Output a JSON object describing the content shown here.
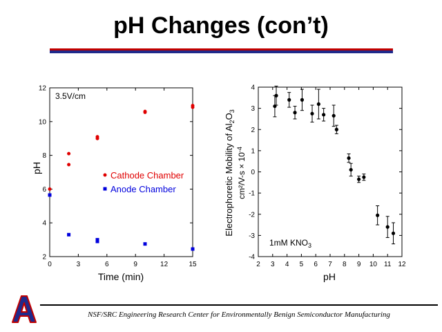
{
  "slide": {
    "title": "pH Changes (con’t)",
    "footer": "NSF/SRC Engineering Research Center for Environmentally Benign Semiconductor Manufacturing",
    "logo_letter": "A",
    "rule_colors": [
      "#c00000",
      "#1f2a8c"
    ]
  },
  "chart_data": [
    {
      "type": "scatter",
      "title": "",
      "annotation": "3.5V/cm",
      "xlabel": "Time (min)",
      "ylabel": "pH",
      "xlim": [
        0,
        15
      ],
      "ylim": [
        2,
        12
      ],
      "xticks": [
        0,
        3,
        6,
        9,
        12,
        15
      ],
      "yticks": [
        2,
        4,
        6,
        8,
        10,
        12
      ],
      "grid": false,
      "legend": "center-right",
      "series": [
        {
          "name": "Cathode Chamber",
          "color": "#e00000",
          "marker": "circle",
          "points": [
            [
              0,
              6.0
            ],
            [
              2,
              8.1
            ],
            [
              2,
              7.45
            ],
            [
              5,
              9.1
            ],
            [
              5,
              9.0
            ],
            [
              10,
              10.6
            ],
            [
              10,
              10.55
            ],
            [
              15,
              10.95
            ],
            [
              15,
              10.85
            ]
          ]
        },
        {
          "name": "Anode Chamber",
          "color": "#0000dd",
          "marker": "square",
          "points": [
            [
              0,
              5.65
            ],
            [
              2,
              3.3
            ],
            [
              5,
              3.0
            ],
            [
              5,
              2.9
            ],
            [
              10,
              2.75
            ],
            [
              15,
              2.45
            ]
          ]
        }
      ]
    },
    {
      "type": "scatter",
      "title": "",
      "annotation": "1mM KNO3",
      "xlabel": "pH",
      "ylabel_line1": "Electrophoretic Mobility of Al2O3",
      "ylabel_line2": "cm²/V-s  × 10-4",
      "xlim": [
        2,
        12
      ],
      "ylim": [
        -4,
        4
      ],
      "xticks": [
        2,
        3,
        4,
        5,
        6,
        7,
        8,
        9,
        10,
        11,
        12
      ],
      "yticks": [
        -4,
        -3,
        -2,
        -1,
        0,
        1,
        2,
        3,
        4
      ],
      "grid": false,
      "series": [
        {
          "color": "#000000",
          "marker": "circle",
          "error_bars": true,
          "points": [
            {
              "x": 3.15,
              "y": 3.1,
              "err": 0.5
            },
            {
              "x": 3.25,
              "y": 3.6,
              "err": 0.45
            },
            {
              "x": 4.15,
              "y": 3.4,
              "err": 0.35
            },
            {
              "x": 4.55,
              "y": 2.8,
              "err": 0.3
            },
            {
              "x": 5.05,
              "y": 3.4,
              "err": 0.5
            },
            {
              "x": 5.75,
              "y": 2.75,
              "err": 0.4
            },
            {
              "x": 6.2,
              "y": 3.2,
              "err": 0.7
            },
            {
              "x": 6.55,
              "y": 2.7,
              "err": 0.3
            },
            {
              "x": 7.25,
              "y": 2.65,
              "err": 0.5
            },
            {
              "x": 7.45,
              "y": 2.0,
              "err": 0.2
            },
            {
              "x": 8.3,
              "y": 0.65,
              "err": 0.2
            },
            {
              "x": 8.45,
              "y": 0.1,
              "err": 0.3
            },
            {
              "x": 9.0,
              "y": -0.35,
              "err": 0.15
            },
            {
              "x": 9.35,
              "y": -0.25,
              "err": 0.15
            },
            {
              "x": 10.3,
              "y": -2.05,
              "err": 0.45
            },
            {
              "x": 11.0,
              "y": -2.6,
              "err": 0.5
            },
            {
              "x": 11.4,
              "y": -2.9,
              "err": 0.5
            }
          ]
        }
      ]
    }
  ]
}
